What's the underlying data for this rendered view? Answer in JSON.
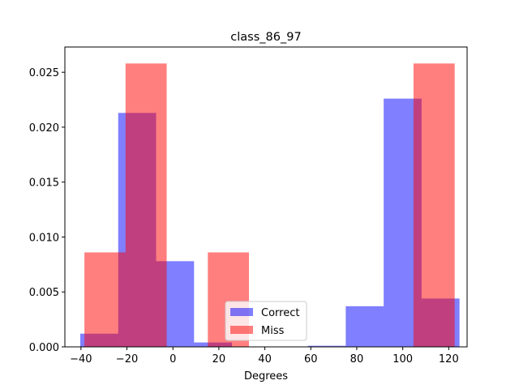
{
  "chart_data": {
    "type": "bar",
    "title": "class_86_97",
    "xlabel": "Degrees",
    "ylabel": "",
    "xlim": [
      -47,
      128
    ],
    "ylim": [
      0,
      0.0273
    ],
    "xticks": [
      -40,
      -20,
      0,
      20,
      40,
      60,
      80,
      100,
      120
    ],
    "xtick_labels": [
      "−40",
      "−20",
      "0",
      "20",
      "40",
      "60",
      "80",
      "100",
      "120"
    ],
    "yticks": [
      0,
      0.005,
      0.01,
      0.015,
      0.02,
      0.025
    ],
    "ytick_labels": [
      "0.000",
      "0.005",
      "0.010",
      "0.015",
      "0.020",
      "0.025"
    ],
    "grid": false,
    "legend_position": "lower-center",
    "series": [
      {
        "name": "Correct",
        "color": "#0000ff",
        "alpha": 0.5,
        "bins": [
          {
            "x0": -40.3,
            "x1": -23.8,
            "value": 0.0012
          },
          {
            "x0": -23.8,
            "x1": -7.3,
            "value": 0.0213
          },
          {
            "x0": -7.3,
            "x1": 9.2,
            "value": 0.0078
          },
          {
            "x0": 9.2,
            "x1": 25.7,
            "value": 0.0004
          },
          {
            "x0": 25.7,
            "x1": 42.2,
            "value": 0.0
          },
          {
            "x0": 42.2,
            "x1": 58.7,
            "value": 0.0
          },
          {
            "x0": 58.7,
            "x1": 75.2,
            "value": 0.0001
          },
          {
            "x0": 75.2,
            "x1": 91.7,
            "value": 0.0037
          },
          {
            "x0": 91.7,
            "x1": 108.2,
            "value": 0.0226
          },
          {
            "x0": 108.2,
            "x1": 124.7,
            "value": 0.0044
          }
        ]
      },
      {
        "name": "Miss",
        "color": "#ff0000",
        "alpha": 0.5,
        "bins": [
          {
            "x0": -38.5,
            "x1": -20.6,
            "value": 0.0086
          },
          {
            "x0": -20.6,
            "x1": -2.7,
            "value": 0.0258
          },
          {
            "x0": -2.7,
            "x1": 15.2,
            "value": 0.0
          },
          {
            "x0": 15.2,
            "x1": 33.1,
            "value": 0.0086
          },
          {
            "x0": 33.1,
            "x1": 51.0,
            "value": 0.0
          },
          {
            "x0": 51.0,
            "x1": 68.9,
            "value": 0.0
          },
          {
            "x0": 68.9,
            "x1": 86.8,
            "value": 0.0
          },
          {
            "x0": 86.8,
            "x1": 104.7,
            "value": 0.0
          },
          {
            "x0": 104.7,
            "x1": 122.6,
            "value": 0.0258
          }
        ]
      }
    ]
  }
}
